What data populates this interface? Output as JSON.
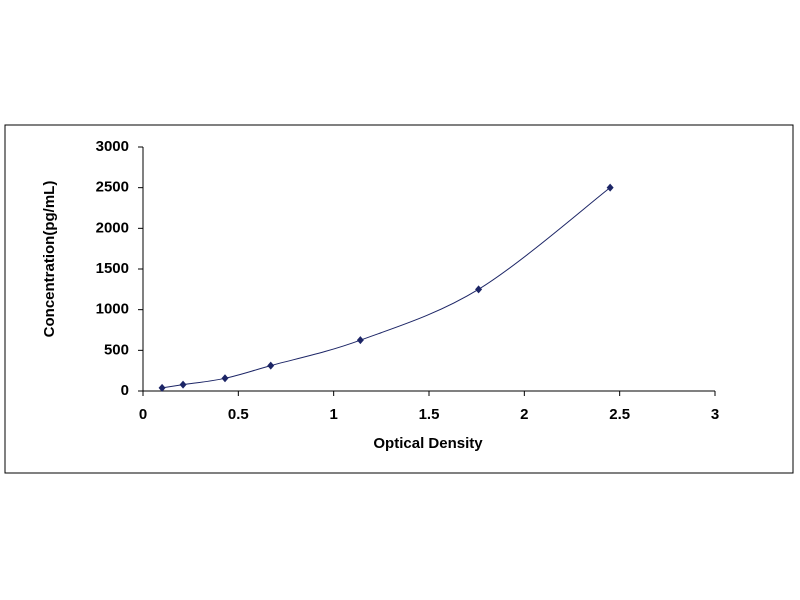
{
  "chart_data": {
    "type": "scatter",
    "xlabel": "Optical Density",
    "ylabel": "Concentration(pg/mL)",
    "x": [
      0.1,
      0.21,
      0.43,
      0.67,
      1.14,
      1.76,
      2.45
    ],
    "values": [
      39,
      78,
      156,
      312,
      625,
      1250,
      2500
    ],
    "color": "#1c2566",
    "smooth_line": true,
    "grid": false,
    "xlim": [
      0,
      3
    ],
    "xticks": [
      0,
      0.5,
      1,
      1.5,
      2,
      2.5,
      3
    ],
    "ylim": [
      0,
      3000
    ],
    "yticks": [
      0,
      500,
      1000,
      1500,
      2000,
      2500,
      3000
    ]
  }
}
